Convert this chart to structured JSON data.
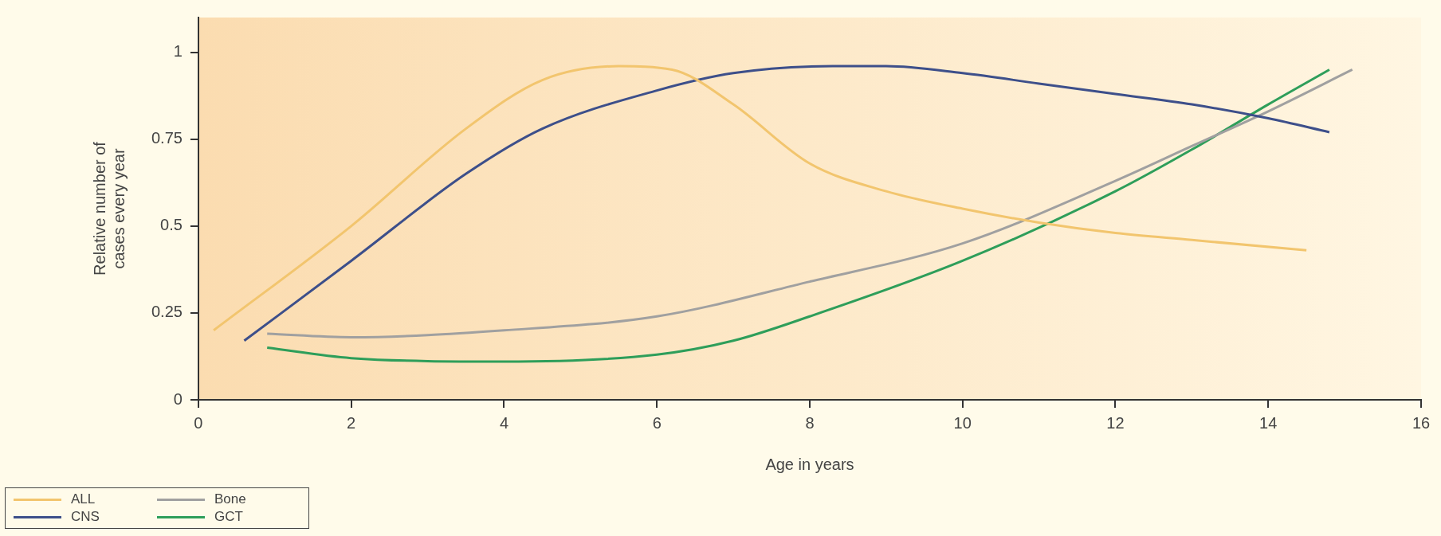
{
  "chart_data": {
    "type": "line",
    "xlabel": "Age in years",
    "ylabel": "Relative number of cases every year",
    "xlim": [
      0,
      16
    ],
    "xticks": [
      0,
      2,
      4,
      6,
      8,
      10,
      12,
      14,
      16
    ],
    "ylim": [
      0,
      1.1
    ],
    "yticks": [
      0,
      0.25,
      0.5,
      0.75,
      1
    ],
    "grid": false,
    "legend": "bottom left",
    "marker": "none",
    "line_style": "solid",
    "series": [
      {
        "name": "ALL",
        "color": "#f2c56e",
        "x": [
          0.2,
          2,
          3.5,
          4.5,
          5.5,
          6.2,
          7,
          8,
          9,
          10,
          11,
          12,
          13,
          14.5
        ],
        "values": [
          0.2,
          0.5,
          0.78,
          0.92,
          0.96,
          0.95,
          0.85,
          0.68,
          0.6,
          0.55,
          0.51,
          0.48,
          0.46,
          0.43
        ]
      },
      {
        "name": "CNS",
        "color": "#3d4f8a",
        "x": [
          0.6,
          2,
          3.5,
          4.5,
          6,
          7,
          8.3,
          9,
          10,
          11,
          12,
          13,
          14,
          14.8
        ],
        "values": [
          0.17,
          0.4,
          0.65,
          0.78,
          0.89,
          0.94,
          0.96,
          0.96,
          0.94,
          0.91,
          0.88,
          0.85,
          0.81,
          0.77
        ]
      },
      {
        "name": "Bone",
        "color": "#a0a0a0",
        "x": [
          0.9,
          2,
          4,
          6,
          8,
          10,
          12,
          13,
          14,
          15.1
        ],
        "values": [
          0.19,
          0.18,
          0.2,
          0.24,
          0.34,
          0.45,
          0.63,
          0.73,
          0.83,
          0.95
        ]
      },
      {
        "name": "GCT",
        "color": "#2e9e5a",
        "x": [
          0.9,
          2,
          4,
          6,
          7,
          8,
          10,
          12,
          13,
          14,
          14.8
        ],
        "values": [
          0.15,
          0.12,
          0.11,
          0.13,
          0.17,
          0.24,
          0.4,
          0.6,
          0.72,
          0.85,
          0.95
        ]
      }
    ]
  }
}
